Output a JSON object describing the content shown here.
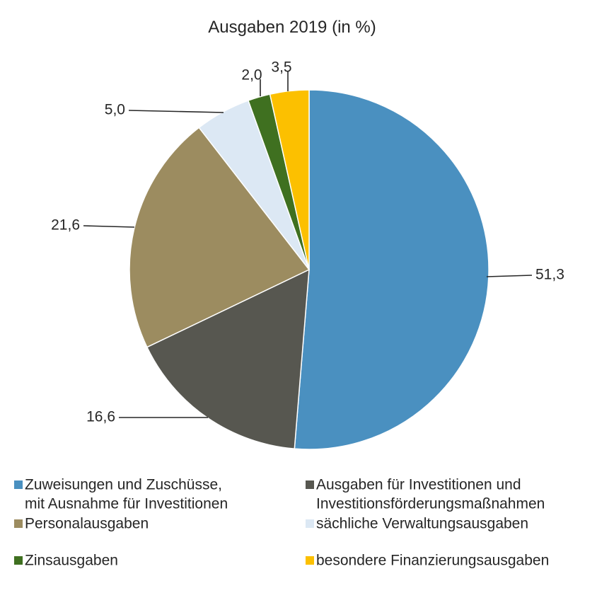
{
  "chart_data": {
    "type": "pie",
    "title": "Ausgaben 2019 (in %)",
    "start_angle_deg": 0,
    "direction": "clockwise",
    "slices": [
      {
        "label_lines": [
          "Zuweisungen und Zuschüsse,",
          "mit Ausnahme für Investitionen"
        ],
        "value": 51.3,
        "value_label": "51,3",
        "color": "#4a90c0"
      },
      {
        "label_lines": [
          "Ausgaben für Investitionen und",
          "Investitionsförderungsmaßnahmen"
        ],
        "value": 16.6,
        "value_label": "16,6",
        "color": "#575750"
      },
      {
        "label_lines": [
          "Personalausgaben"
        ],
        "value": 21.6,
        "value_label": "21,6",
        "color": "#9c8c60"
      },
      {
        "label_lines": [
          "sächliche Verwaltungsausgaben"
        ],
        "value": 5.0,
        "value_label": "5,0",
        "color": "#dce8f4"
      },
      {
        "label_lines": [
          "Zinsausgaben"
        ],
        "value": 2.0,
        "value_label": "2,0",
        "color": "#3f7020"
      },
      {
        "label_lines": [
          "besondere Finanzierungsausgaben"
        ],
        "value": 3.5,
        "value_label": "3,5",
        "color": "#fcc000"
      }
    ],
    "legend_position": "bottom"
  }
}
